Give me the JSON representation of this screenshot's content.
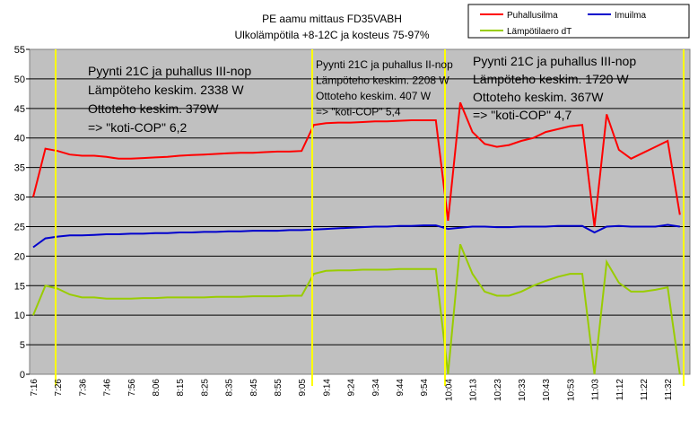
{
  "chart_data": {
    "type": "line",
    "title": "PE aamu mittaus FD35VABH",
    "subtitle": "Ulkolämpötila +8-12C ja kosteus 75-97%",
    "categories": [
      "7:16",
      null,
      "7:26",
      null,
      "7:36",
      null,
      "7:46",
      null,
      "7:56",
      null,
      "8:06",
      null,
      "8:15",
      null,
      "8:25",
      null,
      "8:35",
      null,
      "8:45",
      null,
      "8:55",
      null,
      "9:05",
      null,
      "9:14",
      null,
      "9:24",
      null,
      "9:34",
      null,
      "9:44",
      null,
      "9:54",
      null,
      "10:04",
      null,
      "10:13",
      null,
      "10:23",
      null,
      "10:33",
      null,
      "10:43",
      null,
      "10:53",
      null,
      "11:03",
      null,
      "11:12",
      null,
      "11:22",
      null,
      "11:32",
      null
    ],
    "series": [
      {
        "name": "Puhallusilma",
        "color": "#ff0000",
        "values": [
          30,
          38.2,
          37.8,
          37.2,
          37.0,
          37.0,
          36.8,
          36.5,
          36.5,
          36.6,
          36.7,
          36.8,
          37.0,
          37.1,
          37.2,
          37.3,
          37.4,
          37.5,
          37.5,
          37.6,
          37.7,
          37.7,
          37.8,
          42.2,
          42.5,
          42.6,
          42.6,
          42.7,
          42.8,
          42.8,
          42.9,
          43.0,
          43.0,
          43.0,
          26,
          46,
          41,
          39,
          38.5,
          38.8,
          39.5,
          40,
          41,
          41.5,
          42,
          42.2,
          25,
          44,
          38,
          36.5,
          37.5,
          38.5,
          39.5,
          27
        ]
      },
      {
        "name": "Imuilma",
        "color": "#0000cc",
        "values": [
          21.5,
          23,
          23.3,
          23.5,
          23.5,
          23.6,
          23.7,
          23.7,
          23.8,
          23.8,
          23.9,
          23.9,
          24.0,
          24.0,
          24.1,
          24.1,
          24.2,
          24.2,
          24.3,
          24.3,
          24.3,
          24.4,
          24.4,
          24.5,
          24.6,
          24.7,
          24.8,
          24.9,
          25.0,
          25.0,
          25.1,
          25.1,
          25.2,
          25.2,
          24.6,
          24.8,
          25,
          25,
          24.9,
          24.9,
          25,
          25,
          25,
          25.1,
          25.1,
          25.1,
          24,
          25,
          25.1,
          25,
          25,
          25,
          25.3,
          25
        ]
      },
      {
        "name": "Lämpötilaero dT",
        "color": "#99cc00",
        "values": [
          10,
          15,
          14.5,
          13.5,
          13,
          13,
          12.8,
          12.8,
          12.8,
          12.9,
          12.9,
          13,
          13,
          13,
          13,
          13.1,
          13.1,
          13.1,
          13.2,
          13.2,
          13.2,
          13.3,
          13.3,
          17,
          17.5,
          17.6,
          17.6,
          17.7,
          17.7,
          17.7,
          17.8,
          17.8,
          17.8,
          17.8,
          0,
          22,
          17,
          14,
          13.3,
          13.3,
          14,
          15,
          15.8,
          16.5,
          17,
          17,
          0,
          19,
          15.5,
          14,
          14,
          14.3,
          14.7,
          0
        ]
      }
    ],
    "ylim": [
      0,
      55
    ],
    "yticks": [
      0,
      5,
      10,
      15,
      20,
      25,
      30,
      35,
      40,
      45,
      50,
      55
    ],
    "grid": true,
    "annotations": [
      [
        "Pyynti 21C ja puhallus III-nop",
        "Lämpöteho keskim. 2338 W",
        "Ottoteho keskim. 379W",
        "=> \"koti-COP\" 6,2"
      ],
      [
        "Pyynti 21C ja puhallus II-nop",
        "Lämpöteho keskim. 2208 W",
        "Ottoteho keskim. 407 W",
        "=> \"koti-COP\" 5,4"
      ],
      [
        "Pyynti 21C ja puhallus III-nop",
        "Lämpöteho keskim. 1720 W",
        "Ottoteho keskim. 367W",
        "=> \"koti-COP\" 4,7"
      ]
    ]
  }
}
